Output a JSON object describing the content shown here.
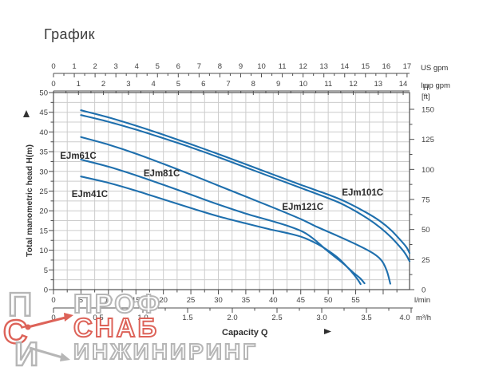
{
  "title": "График",
  "watermark": {
    "line1": "ПРОФ",
    "line2": "СНАБ",
    "line3": "ИНЖИНИРИНГ",
    "logo_letters": [
      "П",
      "С",
      "И"
    ],
    "gray": "#b6b6b6",
    "red": "#dd6359"
  },
  "chart_data": {
    "type": "line",
    "title": "График",
    "curve_color": "#1e6fad",
    "grid": true,
    "xlabel": "Capacity Q",
    "x_axes": [
      {
        "id": "us_gpm",
        "label": "US gpm",
        "ticks": [
          0,
          1,
          2,
          3,
          4,
          5,
          6,
          7,
          8,
          9,
          10,
          11,
          12,
          13,
          14,
          15,
          16,
          17
        ],
        "minor_step": 0.5
      },
      {
        "id": "imp_gpm",
        "label": "Imp gpm",
        "ticks": [
          0,
          1,
          2,
          3,
          4,
          5,
          6,
          7,
          8,
          9,
          10,
          11,
          12,
          13,
          14
        ],
        "minor_step": 0.5
      },
      {
        "id": "l_min",
        "label": "l/min",
        "ticks": [
          0,
          5,
          10,
          15,
          20,
          25,
          30,
          35,
          40,
          45,
          50,
          55
        ],
        "minor_step": 2.5
      },
      {
        "id": "m3_h",
        "label": "m³/h",
        "ticks": [
          "0",
          "0.5",
          "1.0",
          "1.5",
          "2.0",
          "2.5",
          "3.0",
          "3.5",
          "4.0"
        ],
        "minor_step": 0.25
      }
    ],
    "y_axes": [
      {
        "id": "h_m",
        "label": "Total manometric head H(m)",
        "ticks": [
          0,
          5,
          10,
          15,
          20,
          25,
          30,
          35,
          40,
          45,
          50
        ],
        "range": [
          0,
          50
        ],
        "minor_step": 2.5
      },
      {
        "id": "h_ft",
        "label_top": "H",
        "label_unit": "[ft]",
        "ticks": [
          0,
          25,
          50,
          75,
          100,
          125,
          150
        ],
        "minor_step": 12.5
      }
    ],
    "series": [
      {
        "name": "EJm41C",
        "label_q": 3.3,
        "label_h": 23.5,
        "points": [
          [
            5,
            28.7
          ],
          [
            10,
            27.1
          ],
          [
            15,
            25.1
          ],
          [
            20,
            22.9
          ],
          [
            25,
            20.7
          ],
          [
            30,
            18.6
          ],
          [
            35,
            16.8
          ],
          [
            40,
            15.1
          ],
          [
            43,
            14.2
          ],
          [
            45.5,
            13.2
          ],
          [
            48,
            11.6
          ],
          [
            50,
            9.9
          ],
          [
            52,
            7.8
          ],
          [
            54,
            4.9
          ],
          [
            55.2,
            2.9
          ],
          [
            55.9,
            1.4
          ]
        ]
      },
      {
        "name": "EJm61C",
        "label_q": 1.2,
        "label_h": 33.2,
        "points": [
          [
            5,
            33
          ],
          [
            10,
            31.2
          ],
          [
            15,
            29
          ],
          [
            20,
            26.6
          ],
          [
            25,
            24.1
          ],
          [
            30,
            21.6
          ],
          [
            35,
            19.3
          ],
          [
            40,
            17.3
          ],
          [
            43,
            16
          ],
          [
            45.5,
            14.6
          ],
          [
            47.5,
            12.7
          ],
          [
            49.7,
            10
          ],
          [
            52.6,
            6.8
          ],
          [
            54.5,
            4.4
          ],
          [
            55.8,
            2.9
          ],
          [
            56.6,
            1.6
          ]
        ]
      },
      {
        "name": "EJm81C",
        "label_q": 16.4,
        "label_h": 28.7,
        "points": [
          [
            5,
            38.7
          ],
          [
            10,
            36.8
          ],
          [
            15,
            34.5
          ],
          [
            20,
            31.9
          ],
          [
            25,
            29.2
          ],
          [
            30,
            26.4
          ],
          [
            35,
            23.6
          ],
          [
            40,
            20.8
          ],
          [
            45,
            17.9
          ],
          [
            48,
            15.9
          ],
          [
            51.6,
            13.7
          ],
          [
            55.5,
            11.2
          ],
          [
            58.4,
            9
          ],
          [
            59.8,
            7.2
          ],
          [
            60.7,
            4.6
          ],
          [
            61.3,
            1.5
          ]
        ]
      },
      {
        "name": "EJm121C",
        "label_q": 41.6,
        "label_h": 20.2,
        "points": [
          [
            5,
            44.3
          ],
          [
            10,
            42.6
          ],
          [
            15,
            40.6
          ],
          [
            20,
            38.4
          ],
          [
            25,
            36.1
          ],
          [
            30,
            33.6
          ],
          [
            35,
            31
          ],
          [
            40,
            28.4
          ],
          [
            45,
            25.8
          ],
          [
            50,
            23.2
          ],
          [
            53,
            21.4
          ],
          [
            57,
            18.2
          ],
          [
            59.5,
            15.7
          ],
          [
            61.5,
            13.2
          ],
          [
            63.5,
            10.1
          ],
          [
            64.3,
            8.5
          ],
          [
            64.8,
            7.2
          ]
        ]
      },
      {
        "name": "EJm101C",
        "label_q": 52.5,
        "label_h": 23.9,
        "points": [
          [
            5,
            45.5
          ],
          [
            10,
            43.7
          ],
          [
            15,
            41.6
          ],
          [
            20,
            39.3
          ],
          [
            25,
            36.9
          ],
          [
            30,
            34.4
          ],
          [
            35,
            31.8
          ],
          [
            40,
            29.2
          ],
          [
            45,
            26.6
          ],
          [
            50,
            24.1
          ],
          [
            53,
            22.4
          ],
          [
            57,
            19.5
          ],
          [
            59.5,
            17.3
          ],
          [
            61.5,
            15
          ],
          [
            63.5,
            12
          ],
          [
            64.3,
            10.6
          ],
          [
            64.8,
            9.3
          ]
        ]
      }
    ]
  }
}
